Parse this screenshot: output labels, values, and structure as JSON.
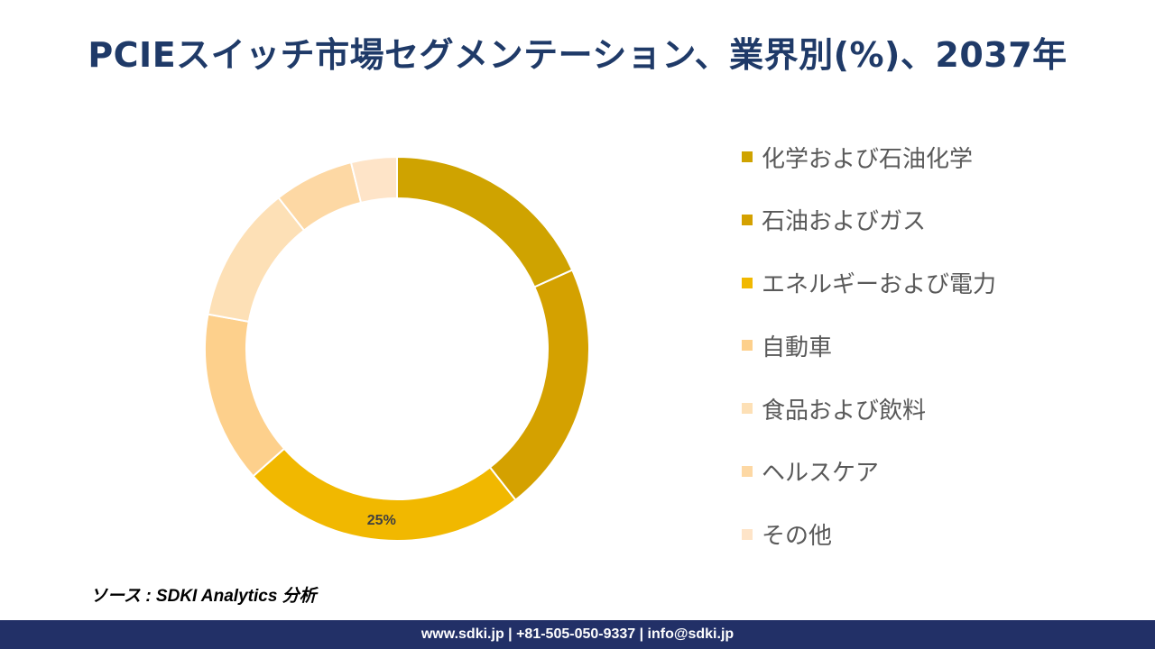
{
  "title": "PCIEスイッチ市場セグメンテーション、業界別(%)、2037年",
  "source": "ソース : SDKI Analytics 分析",
  "footer": "www.sdki.jp | +81-505-050-9337 | info@sdki.jp",
  "chart_data": {
    "type": "pie",
    "subtype": "donut",
    "categories": [
      "化学および石油化学",
      "石油およびガス",
      "エネルギーおよび電力",
      "自動車",
      "食品および飲料",
      "ヘルスケア",
      "その他"
    ],
    "values": [
      19,
      22,
      25,
      15,
      12,
      7,
      4
    ],
    "colors": [
      "#cfa300",
      "#d4a100",
      "#f1b800",
      "#fdd08c",
      "#fde0b6",
      "#fdd8a4",
      "#fee4c8"
    ],
    "data_labels": [
      null,
      null,
      "25%",
      null,
      null,
      null,
      null
    ],
    "legend_position": "right"
  }
}
